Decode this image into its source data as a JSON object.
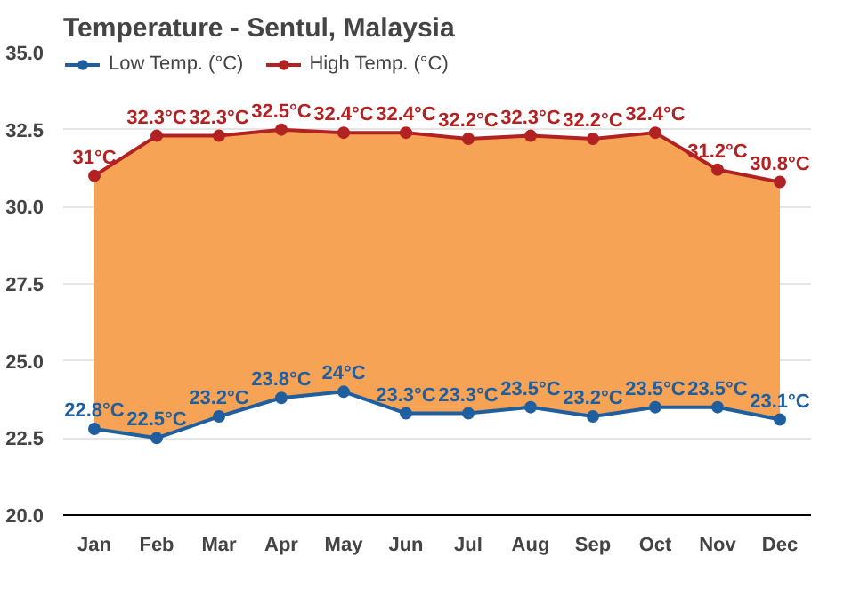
{
  "chart_data": {
    "type": "line",
    "title": "Temperature - Sentul, Malaysia",
    "categories": [
      "Jan",
      "Feb",
      "Mar",
      "Apr",
      "May",
      "Jun",
      "Jul",
      "Aug",
      "Sep",
      "Oct",
      "Nov",
      "Dec"
    ],
    "series": [
      {
        "name": "Low Temp. (°C)",
        "color": "#1f5fa0",
        "values": [
          22.8,
          22.5,
          23.2,
          23.8,
          24,
          23.3,
          23.3,
          23.5,
          23.2,
          23.5,
          23.5,
          23.1
        ],
        "value_labels": [
          "22.8°C",
          "22.5°C",
          "23.2°C",
          "23.8°C",
          "24°C",
          "23.3°C",
          "23.3°C",
          "23.5°C",
          "23.2°C",
          "23.5°C",
          "23.5°C",
          "23.1°C"
        ]
      },
      {
        "name": "High Temp. (°C)",
        "color": "#b22222",
        "values": [
          31,
          32.3,
          32.3,
          32.5,
          32.4,
          32.4,
          32.2,
          32.3,
          32.2,
          32.4,
          31.2,
          30.8
        ],
        "value_labels": [
          "31°C",
          "32.3°C",
          "32.3°C",
          "32.5°C",
          "32.4°C",
          "32.4°C",
          "32.2°C",
          "32.3°C",
          "32.2°C",
          "32.4°C",
          "31.2°C",
          "30.8°C"
        ],
        "lower": [
          22.8,
          22.5,
          23.2,
          23.8,
          24,
          23.3,
          23.3,
          23.5,
          23.2,
          23.5,
          23.5,
          23.1
        ],
        "upper": [
          31,
          32.3,
          32.3,
          32.5,
          32.4,
          32.4,
          32.2,
          32.3,
          32.2,
          32.4,
          31.2,
          30.8
        ]
      }
    ],
    "ylim": [
      20,
      35
    ],
    "yticks": [
      {
        "value": 20,
        "label": "20.0"
      },
      {
        "value": 22.5,
        "label": "22.5"
      },
      {
        "value": 25,
        "label": "25.0"
      },
      {
        "value": 27.5,
        "label": "27.5"
      },
      {
        "value": 30,
        "label": "30.0"
      },
      {
        "value": 32.5,
        "label": "32.5"
      },
      {
        "value": 35,
        "label": "35.0"
      }
    ],
    "grid": "y",
    "legend": "top left",
    "marker": "circle",
    "line_style": "solid"
  }
}
